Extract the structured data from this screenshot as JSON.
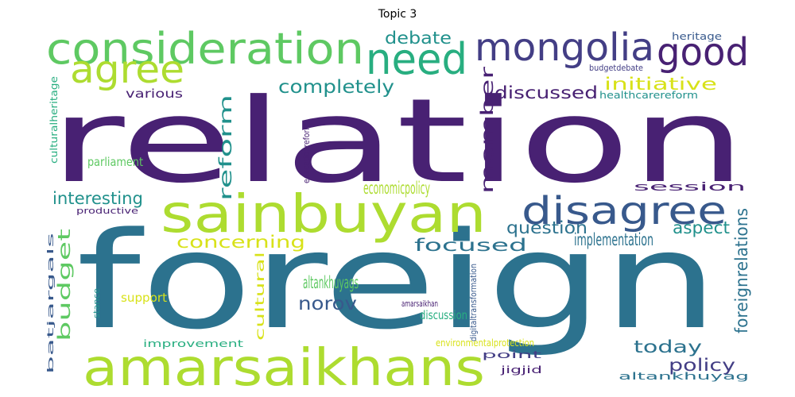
{
  "title": "Topic 3",
  "palette": {
    "dark_purple": "#482173",
    "indigo": "#433e85",
    "blue_slate": "#38598c",
    "teal_blue": "#2c728e",
    "teal": "#21918c",
    "green_teal": "#28ae80",
    "green": "#5ec962",
    "lime": "#addc30",
    "yellow": "#d8e219"
  },
  "words": [
    {
      "text": "relation",
      "color": "#482173"
    },
    {
      "text": "foreign",
      "color": "#2c728e"
    },
    {
      "text": "amarsaikhans",
      "color": "#addc30"
    },
    {
      "text": "sainbuyan",
      "color": "#addc30"
    },
    {
      "text": "consideration",
      "color": "#5ec962"
    },
    {
      "text": "need",
      "color": "#28ae80"
    },
    {
      "text": "mongolia",
      "color": "#433e85"
    },
    {
      "text": "good",
      "color": "#482173"
    },
    {
      "text": "agree",
      "color": "#addc30"
    },
    {
      "text": "disagree",
      "color": "#38598c"
    },
    {
      "text": "debate",
      "color": "#21918c"
    },
    {
      "text": "completely",
      "color": "#21918c"
    },
    {
      "text": "initiative",
      "color": "#d8e219"
    },
    {
      "text": "discussed",
      "color": "#482173"
    },
    {
      "text": "heritage",
      "color": "#38598c"
    },
    {
      "text": "budgetdebate",
      "color": "#433e85"
    },
    {
      "text": "healthcarereform",
      "color": "#21918c"
    },
    {
      "text": "various",
      "color": "#482173"
    },
    {
      "text": "parliament",
      "color": "#5ec962"
    },
    {
      "text": "interesting",
      "color": "#21918c"
    },
    {
      "text": "economicpolicy",
      "color": "#addc30"
    },
    {
      "text": "session",
      "color": "#482173"
    },
    {
      "text": "productive",
      "color": "#482173"
    },
    {
      "text": "question",
      "color": "#2c728e"
    },
    {
      "text": "aspect",
      "color": "#21918c"
    },
    {
      "text": "implementation",
      "color": "#2c728e"
    },
    {
      "text": "concerning",
      "color": "#d8e219"
    },
    {
      "text": "focused",
      "color": "#2c728e"
    },
    {
      "text": "altankhuyags",
      "color": "#5ec962"
    },
    {
      "text": "norov",
      "color": "#38598c"
    },
    {
      "text": "support",
      "color": "#d8e219"
    },
    {
      "text": "amarsaikhan",
      "color": "#482173"
    },
    {
      "text": "discussion",
      "color": "#28ae80"
    },
    {
      "text": "improvement",
      "color": "#28ae80"
    },
    {
      "text": "environmentalprotection",
      "color": "#d8e219"
    },
    {
      "text": "today",
      "color": "#2c728e"
    },
    {
      "text": "point",
      "color": "#433e85"
    },
    {
      "text": "policy",
      "color": "#433e85"
    },
    {
      "text": "jigjid",
      "color": "#482173"
    },
    {
      "text": "altankhuyag",
      "color": "#2c728e"
    },
    {
      "text": "reform",
      "color": "#21918c"
    },
    {
      "text": "member",
      "color": "#482173"
    },
    {
      "text": "culturalheritage",
      "color": "#28ae80"
    },
    {
      "text": "educationreform",
      "color": "#482173"
    },
    {
      "text": "foreignrelations",
      "color": "#2c728e"
    },
    {
      "text": "budget",
      "color": "#5ec962"
    },
    {
      "text": "batjargals",
      "color": "#38598c"
    },
    {
      "text": "stance",
      "color": "#21918c"
    },
    {
      "text": "cultural",
      "color": "#d8e219"
    },
    {
      "text": "digitaltransformation",
      "color": "#38598c"
    }
  ]
}
